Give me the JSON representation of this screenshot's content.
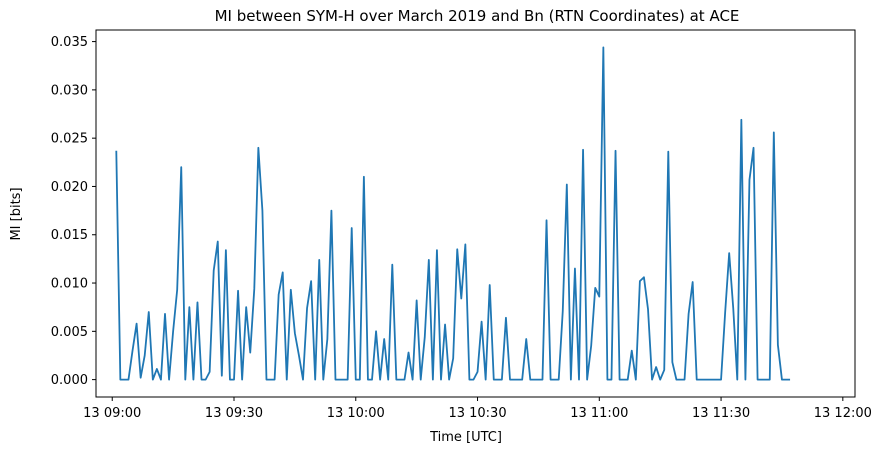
{
  "chart_data": {
    "type": "line",
    "title": "MI between SYM-H over March 2019 and Bn (RTN Coordinates) at ACE",
    "xlabel": "Time [UTC]",
    "ylabel": "MI [bits]",
    "x_start": "13 09:01",
    "x_step_minutes": 1,
    "xlim": [
      "13 08:56",
      "13 12:03"
    ],
    "ylim": [
      -0.0018,
      0.0362
    ],
    "x_ticks": [
      "13 09:00",
      "13 09:30",
      "13 10:00",
      "13 10:30",
      "13 11:00",
      "13 11:30",
      "13 12:00"
    ],
    "x_tick_minutes": [
      0,
      30,
      60,
      90,
      120,
      150,
      180
    ],
    "y_ticks": [
      "0.000",
      "0.005",
      "0.010",
      "0.015",
      "0.020",
      "0.025",
      "0.030",
      "0.035"
    ],
    "y_tick_values": [
      0,
      0.005,
      0.01,
      0.015,
      0.02,
      0.025,
      0.03,
      0.035
    ],
    "grid": false,
    "series": [
      {
        "color": "#1f77b4",
        "values": [
          0.0237,
          0,
          0,
          0,
          0.003,
          0.0058,
          0.0002,
          0.0025,
          0.007,
          0,
          0.0011,
          0,
          0.0068,
          0,
          0.005,
          0.0093,
          0.022,
          0,
          0.0075,
          0,
          0.008,
          0,
          0,
          0.0008,
          0.0113,
          0.0143,
          0.0004,
          0.0134,
          0,
          0,
          0.0092,
          0,
          0.0075,
          0.0028,
          0.0094,
          0.024,
          0.0175,
          0,
          0,
          0,
          0.0088,
          0.0111,
          0,
          0.0093,
          0.0048,
          0.0025,
          0,
          0.0074,
          0.0102,
          0,
          0.0124,
          0,
          0.0042,
          0.0175,
          0,
          0,
          0,
          0,
          0.0157,
          0,
          0,
          0.021,
          0,
          0,
          0.005,
          0,
          0.0042,
          0,
          0.0119,
          0,
          0,
          0,
          0.0028,
          0,
          0.0082,
          0,
          0.0044,
          0.0124,
          0,
          0.0134,
          0,
          0.0057,
          0,
          0.0022,
          0.0135,
          0.0084,
          0.014,
          0,
          0,
          0.0008,
          0.006,
          0,
          0.0098,
          0,
          0,
          0,
          0.0064,
          0,
          0,
          0,
          0,
          0.0042,
          0,
          0,
          0,
          0,
          0.0165,
          0,
          0,
          0,
          0.0071,
          0.0202,
          0,
          0.0115,
          0,
          0.0238,
          0,
          0.0035,
          0.0095,
          0.0086,
          0.0344,
          0,
          0,
          0.0237,
          0,
          0,
          0,
          0.003,
          0,
          0.0102,
          0.0106,
          0.0073,
          0,
          0.0013,
          0,
          0.001,
          0.0236,
          0.0018,
          0,
          0,
          0,
          0.0068,
          0.0101,
          0,
          0,
          0,
          0,
          0,
          0,
          0,
          0.0069,
          0.0131,
          0.0074,
          0,
          0.0269,
          0,
          0.0207,
          0.024,
          0,
          0,
          0,
          0,
          0.0256,
          0.0036,
          0,
          0,
          0
        ]
      }
    ]
  }
}
